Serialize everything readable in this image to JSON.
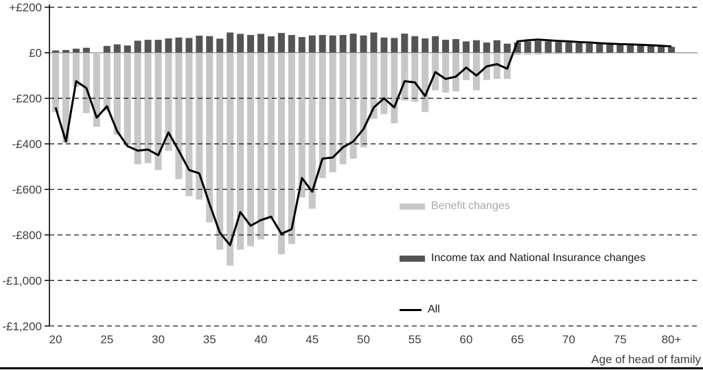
{
  "colors": {
    "benefit_bar": "#c7c7c7",
    "tax_bar": "#545454",
    "all_line": "#000000",
    "zero_line": "#b3b3b3",
    "gridline": "#1a1a1a",
    "axis_text": "#3d3d3d",
    "benefit_legend_text": "#a8a8a8",
    "legend_text": "#1a1a1a"
  },
  "legend": {
    "items": [
      {
        "label": "Benefit changes",
        "type": "bar",
        "color": "#c7c7c7",
        "text_color": "#a8a8a8"
      },
      {
        "label": "Income tax and National Insurance changes",
        "type": "bar",
        "color": "#545454",
        "text_color": "#1a1a1a"
      },
      {
        "label": "All",
        "type": "line",
        "color": "#000000",
        "text_color": "#1a1a1a"
      }
    ]
  },
  "chart_data": {
    "type": "combo-bar-line",
    "xlabel": "Age of head of family",
    "ylabel": "",
    "ylim": [
      -1200,
      200
    ],
    "grid": "dashed horizontal at every £200",
    "legend_position": "inside right-middle",
    "x_axis": {
      "age_min": 20,
      "age_max": 80,
      "last_category_label": "80+",
      "ticks": [
        {
          "age": 20,
          "label": "20"
        },
        {
          "age": 25,
          "label": "25"
        },
        {
          "age": 30,
          "label": "30"
        },
        {
          "age": 35,
          "label": "35"
        },
        {
          "age": 40,
          "label": "40"
        },
        {
          "age": 45,
          "label": "45"
        },
        {
          "age": 50,
          "label": "50"
        },
        {
          "age": 55,
          "label": "55"
        },
        {
          "age": 60,
          "label": "60"
        },
        {
          "age": 65,
          "label": "65"
        },
        {
          "age": 70,
          "label": "70"
        },
        {
          "age": 75,
          "label": "75"
        },
        {
          "age": 80,
          "label": "80+"
        }
      ]
    },
    "y_axis": {
      "ticks": [
        {
          "value": 200,
          "label": "+£200"
        },
        {
          "value": 0,
          "label": "£0"
        },
        {
          "value": -200,
          "label": "-£200"
        },
        {
          "value": -400,
          "label": "-£400"
        },
        {
          "value": -600,
          "label": "-£600"
        },
        {
          "value": -800,
          "label": "-£800"
        },
        {
          "value": -1000,
          "label": "-£1,000"
        },
        {
          "value": -1200,
          "label": "-£1,200"
        }
      ]
    },
    "ages": [
      20,
      21,
      22,
      23,
      24,
      25,
      26,
      27,
      28,
      29,
      30,
      31,
      32,
      33,
      34,
      35,
      36,
      37,
      38,
      39,
      40,
      41,
      42,
      43,
      44,
      45,
      46,
      47,
      48,
      49,
      50,
      51,
      52,
      53,
      54,
      55,
      56,
      57,
      58,
      59,
      60,
      61,
      62,
      63,
      64,
      65,
      66,
      67,
      68,
      69,
      70,
      71,
      72,
      73,
      74,
      75,
      76,
      77,
      78,
      79,
      80
    ],
    "series": [
      {
        "name": "Benefit changes",
        "kind": "bar",
        "color": "#c7c7c7",
        "values": [
          -260,
          -395,
          -150,
          -265,
          -325,
          -255,
          -360,
          -405,
          -490,
          -485,
          -515,
          -430,
          -555,
          -630,
          -645,
          -745,
          -865,
          -935,
          -865,
          -850,
          -820,
          -725,
          -885,
          -840,
          -635,
          -685,
          -550,
          -525,
          -490,
          -465,
          -415,
          -290,
          -270,
          -310,
          -210,
          -215,
          -260,
          -165,
          -175,
          -170,
          -120,
          -165,
          -120,
          -115,
          -115,
          -10,
          -8,
          -8,
          -6,
          -6,
          -5,
          -5,
          -5,
          -5,
          -4,
          -4,
          -4,
          -3,
          -3,
          -3,
          -3
        ]
      },
      {
        "name": "Income tax and National Insurance changes",
        "kind": "bar",
        "color": "#545454",
        "values": [
          10,
          12,
          18,
          22,
          0,
          30,
          37,
          32,
          53,
          57,
          57,
          63,
          67,
          65,
          75,
          73,
          62,
          89,
          83,
          78,
          83,
          72,
          87,
          78,
          69,
          76,
          78,
          76,
          78,
          84,
          76,
          89,
          67,
          65,
          84,
          73,
          63,
          73,
          57,
          60,
          50,
          55,
          45,
          55,
          40,
          45,
          50,
          52,
          50,
          47,
          45,
          42,
          40,
          38,
          36,
          34,
          33,
          31,
          30,
          28,
          26
        ]
      },
      {
        "name": "All",
        "kind": "line",
        "color": "#000000",
        "values": [
          -240,
          -390,
          -125,
          -155,
          -285,
          -235,
          -345,
          -410,
          -430,
          -425,
          -450,
          -350,
          -430,
          -515,
          -530,
          -665,
          -790,
          -845,
          -700,
          -760,
          -735,
          -720,
          -795,
          -775,
          -550,
          -610,
          -465,
          -460,
          -415,
          -390,
          -335,
          -240,
          -200,
          -240,
          -125,
          -130,
          -190,
          -85,
          -115,
          -105,
          -65,
          -100,
          -60,
          -50,
          -70,
          50,
          55,
          58,
          55,
          52,
          50,
          47,
          45,
          42,
          40,
          38,
          37,
          35,
          33,
          31,
          28
        ]
      }
    ]
  }
}
